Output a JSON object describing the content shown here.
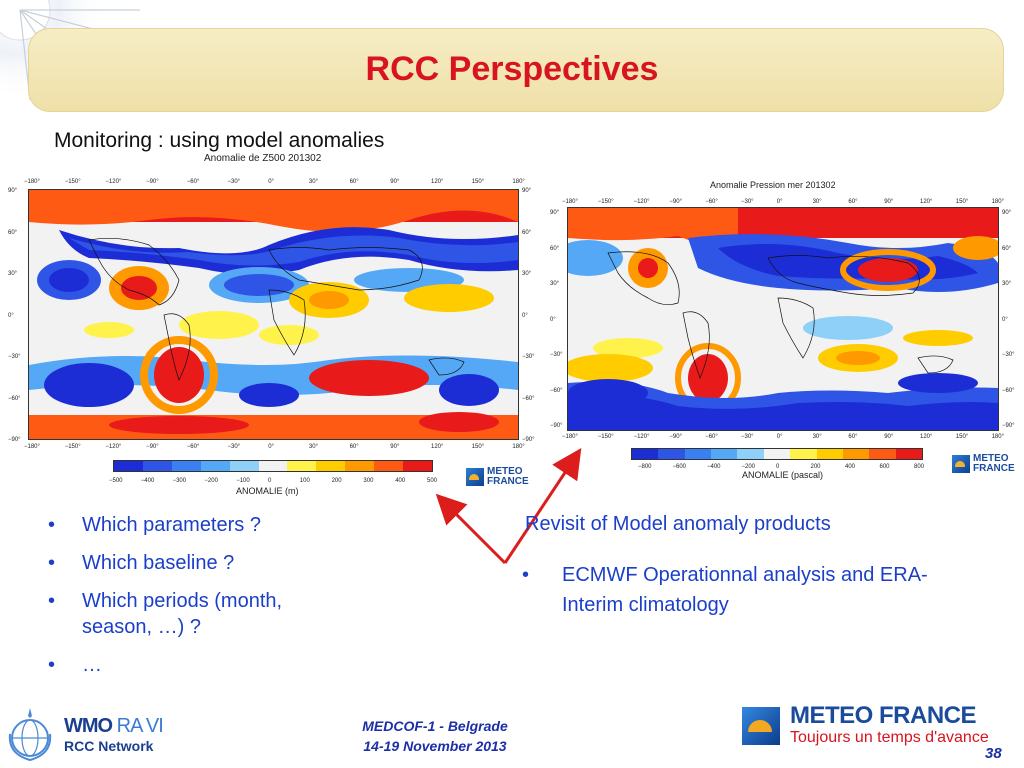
{
  "slide": {
    "title": "RCC Perspectives",
    "subtitle": "Monitoring : using model anomalies",
    "left_map": {
      "title": "Anomalie de Z500 201302",
      "lon_ticks": [
        "−180°",
        "−150°",
        "−120°",
        "−90°",
        "−60°",
        "−30°",
        "0°",
        "30°",
        "60°",
        "90°",
        "120°",
        "150°",
        "180°"
      ],
      "lat_ticks": [
        "90°",
        "60°",
        "30°",
        "0°",
        "−30°",
        "−60°",
        "−90°"
      ],
      "colorbar_ticks": [
        "−500",
        "−400",
        "−300",
        "−200",
        "−100",
        "0",
        "100",
        "200",
        "300",
        "400",
        "500"
      ],
      "colorbar_title": "ANOMALIE (m)"
    },
    "right_map": {
      "title": "Anomalie Pression mer 201302",
      "lon_ticks": [
        "−180°",
        "−150°",
        "−120°",
        "−90°",
        "−60°",
        "−30°",
        "0°",
        "30°",
        "60°",
        "90°",
        "120°",
        "150°",
        "180°"
      ],
      "lat_ticks": [
        "90°",
        "60°",
        "30°",
        "0°",
        "−30°",
        "−60°",
        "−90°"
      ],
      "colorbar_ticks": [
        "−800",
        "−600",
        "−400",
        "−200",
        "0",
        "200",
        "400",
        "600",
        "800"
      ],
      "colorbar_title": "ANOMALIE (pascal)"
    },
    "colorscale": [
      "#1d2dd6",
      "#2f55e6",
      "#3a80f0",
      "#55a8f5",
      "#8fd0f8",
      "#f2f2f2",
      "#fff24a",
      "#ffcc00",
      "#ff9900",
      "#ff5a14",
      "#e81a1a"
    ],
    "mf_logo_small": {
      "line1": "METEO",
      "line2": "FRANCE"
    },
    "left_bullets": [
      "Which parameters ?",
      "Which baseline ?",
      "Which periods (month, season, …) ?",
      "…"
    ],
    "right_heading": "Revisit of Model anomaly products",
    "right_bullets": [
      "ECMWF Operationnal analysis and ERA-Interim climatology"
    ],
    "bullet_symbol": "•",
    "footer": {
      "event": "MEDCOF-1 - Belgrade",
      "dates": "14-19 November 2013",
      "page": "38",
      "wmo_line1_a": "WMO",
      "wmo_line1_b": "RA VI",
      "wmo_line2": "RCC Network",
      "mf_name": "METEO FRANCE",
      "mf_slogan": "Toujours un temps d'avance"
    },
    "colors": {
      "title": "#d8141e",
      "bullets": "#1b3fc9",
      "arrow": "#dd1c1c"
    }
  }
}
